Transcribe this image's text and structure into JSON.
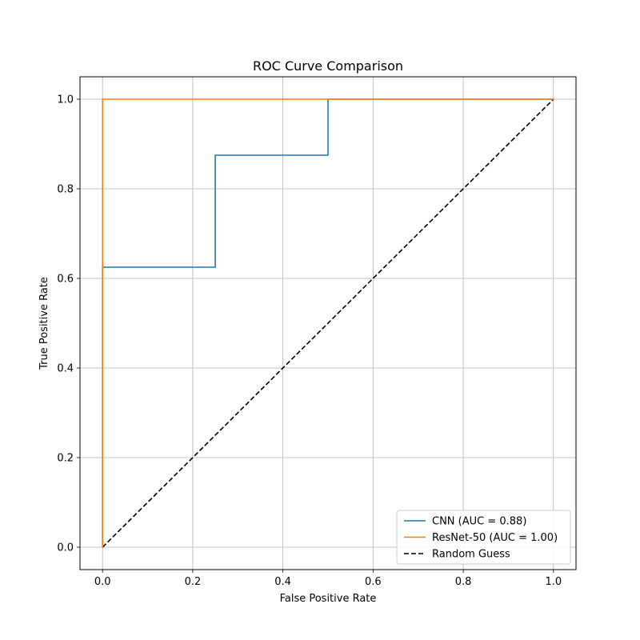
{
  "chart_data": {
    "type": "line",
    "title": "ROC Curve Comparison",
    "xlabel": "False Positive Rate",
    "ylabel": "True Positive Rate",
    "xlim": [
      -0.05,
      1.05
    ],
    "ylim": [
      -0.05,
      1.05
    ],
    "xticks": [
      0.0,
      0.2,
      0.4,
      0.6,
      0.8,
      1.0
    ],
    "yticks": [
      0.0,
      0.2,
      0.4,
      0.6,
      0.8,
      1.0
    ],
    "xtick_labels": [
      "0.0",
      "0.2",
      "0.4",
      "0.6",
      "0.8",
      "1.0"
    ],
    "ytick_labels": [
      "0.0",
      "0.2",
      "0.4",
      "0.6",
      "0.8",
      "1.0"
    ],
    "grid": true,
    "legend_position": "lower right",
    "series": [
      {
        "name": "CNN (AUC = 0.88)",
        "color": "#1f77b4",
        "style": "solid",
        "x": [
          0.0,
          0.0,
          0.25,
          0.25,
          0.5,
          0.5,
          1.0
        ],
        "y": [
          0.0,
          0.625,
          0.625,
          0.875,
          0.875,
          1.0,
          1.0
        ]
      },
      {
        "name": "ResNet-50 (AUC = 1.00)",
        "color": "#ff7f0e",
        "style": "solid",
        "x": [
          0.0,
          0.0,
          1.0
        ],
        "y": [
          0.0,
          1.0,
          1.0
        ]
      },
      {
        "name": "Random Guess",
        "color": "#000000",
        "style": "dashed",
        "x": [
          0.0,
          1.0
        ],
        "y": [
          0.0,
          1.0
        ]
      }
    ]
  }
}
